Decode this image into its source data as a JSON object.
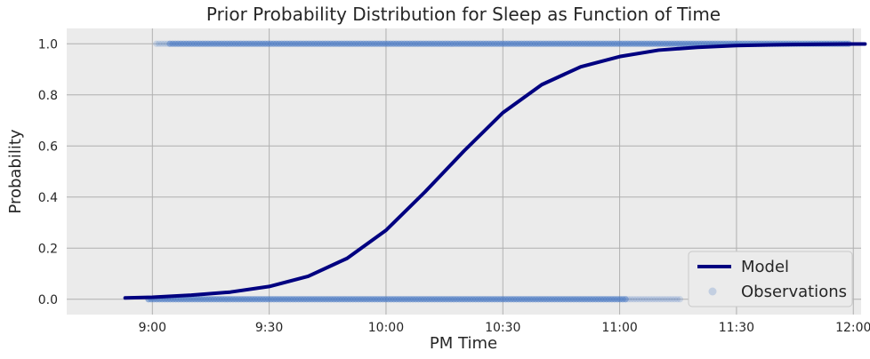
{
  "chart_data": {
    "type": "scatter",
    "title": "Prior Probability Distribution for Sleep as Function of Time",
    "xlabel": "PM Time",
    "ylabel": "Probability",
    "x_unit": "minutes after 9:00 PM",
    "xlim": [
      -22,
      182
    ],
    "ylim": [
      -0.06,
      1.06
    ],
    "xticks": [
      {
        "value": 0,
        "label": "9:00"
      },
      {
        "value": 30,
        "label": "9:30"
      },
      {
        "value": 60,
        "label": "10:00"
      },
      {
        "value": 90,
        "label": "10:30"
      },
      {
        "value": 120,
        "label": "11:00"
      },
      {
        "value": 150,
        "label": "11:30"
      },
      {
        "value": 180,
        "label": "12:00"
      }
    ],
    "yticks": [
      {
        "value": 0.0,
        "label": "0.0"
      },
      {
        "value": 0.2,
        "label": "0.2"
      },
      {
        "value": 0.4,
        "label": "0.4"
      },
      {
        "value": 0.6,
        "label": "0.6"
      },
      {
        "value": 0.8,
        "label": "0.8"
      },
      {
        "value": 1.0,
        "label": "1.0"
      }
    ],
    "grid": true,
    "legend_position": "bottom-right",
    "series": [
      {
        "name": "Model",
        "kind": "line",
        "color": "#000080",
        "x": [
          -7,
          0,
          10,
          20,
          30,
          40,
          50,
          60,
          70,
          80,
          90,
          100,
          110,
          120,
          130,
          140,
          150,
          160,
          170,
          180,
          183
        ],
        "y": [
          0.005,
          0.008,
          0.016,
          0.028,
          0.05,
          0.09,
          0.16,
          0.27,
          0.42,
          0.58,
          0.73,
          0.84,
          0.91,
          0.95,
          0.975,
          0.986,
          0.993,
          0.996,
          0.998,
          0.999,
          0.999
        ]
      },
      {
        "name": "Observations",
        "kind": "scatter",
        "color": "#4a7ac4",
        "groups": [
          {
            "y": 1,
            "x_start": 1,
            "x_end": 179,
            "dense_from": 4
          },
          {
            "y": 0,
            "x_start": -1,
            "x_end": 136,
            "dense_until": 122
          }
        ]
      }
    ]
  }
}
